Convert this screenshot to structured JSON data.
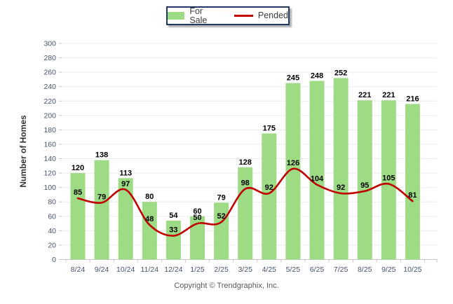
{
  "legend": {
    "for_sale_label": "For Sale",
    "pended_label": "Pended"
  },
  "y_axis": {
    "title": "Number of Homes"
  },
  "footer": {
    "copyright": "Copyright © Trendgraphix, Inc."
  },
  "chart_data": {
    "type": "bar",
    "categories": [
      "8/24",
      "9/24",
      "10/24",
      "11/24",
      "12/24",
      "1/25",
      "2/25",
      "3/25",
      "4/25",
      "5/25",
      "6/25",
      "7/25",
      "8/25",
      "9/25",
      "10/25"
    ],
    "series": [
      {
        "name": "For Sale",
        "type": "bar",
        "color": "#9EDB85",
        "values": [
          120,
          138,
          113,
          80,
          54,
          60,
          79,
          128,
          175,
          245,
          248,
          252,
          221,
          221,
          216
        ]
      },
      {
        "name": "Pended",
        "type": "line",
        "color": "#C00000",
        "values": [
          85,
          79,
          97,
          48,
          33,
          50,
          52,
          98,
          92,
          126,
          104,
          92,
          95,
          105,
          81
        ]
      }
    ],
    "title": "",
    "xlabel": "",
    "ylabel": "Number of Homes",
    "ylim": [
      0,
      300
    ],
    "ytick_step": 20,
    "grid": true,
    "legend_position": "top-center",
    "value_labels": true
  },
  "colors": {
    "bar_green": "#9EDB85",
    "line_red": "#C00000",
    "legend_border": "#1F3864",
    "gridline": "#EBEBEB",
    "axis_line": "#C6C6C6",
    "tick_label": "#44546A",
    "data_label": "#000000",
    "footer_text": "#595959"
  }
}
